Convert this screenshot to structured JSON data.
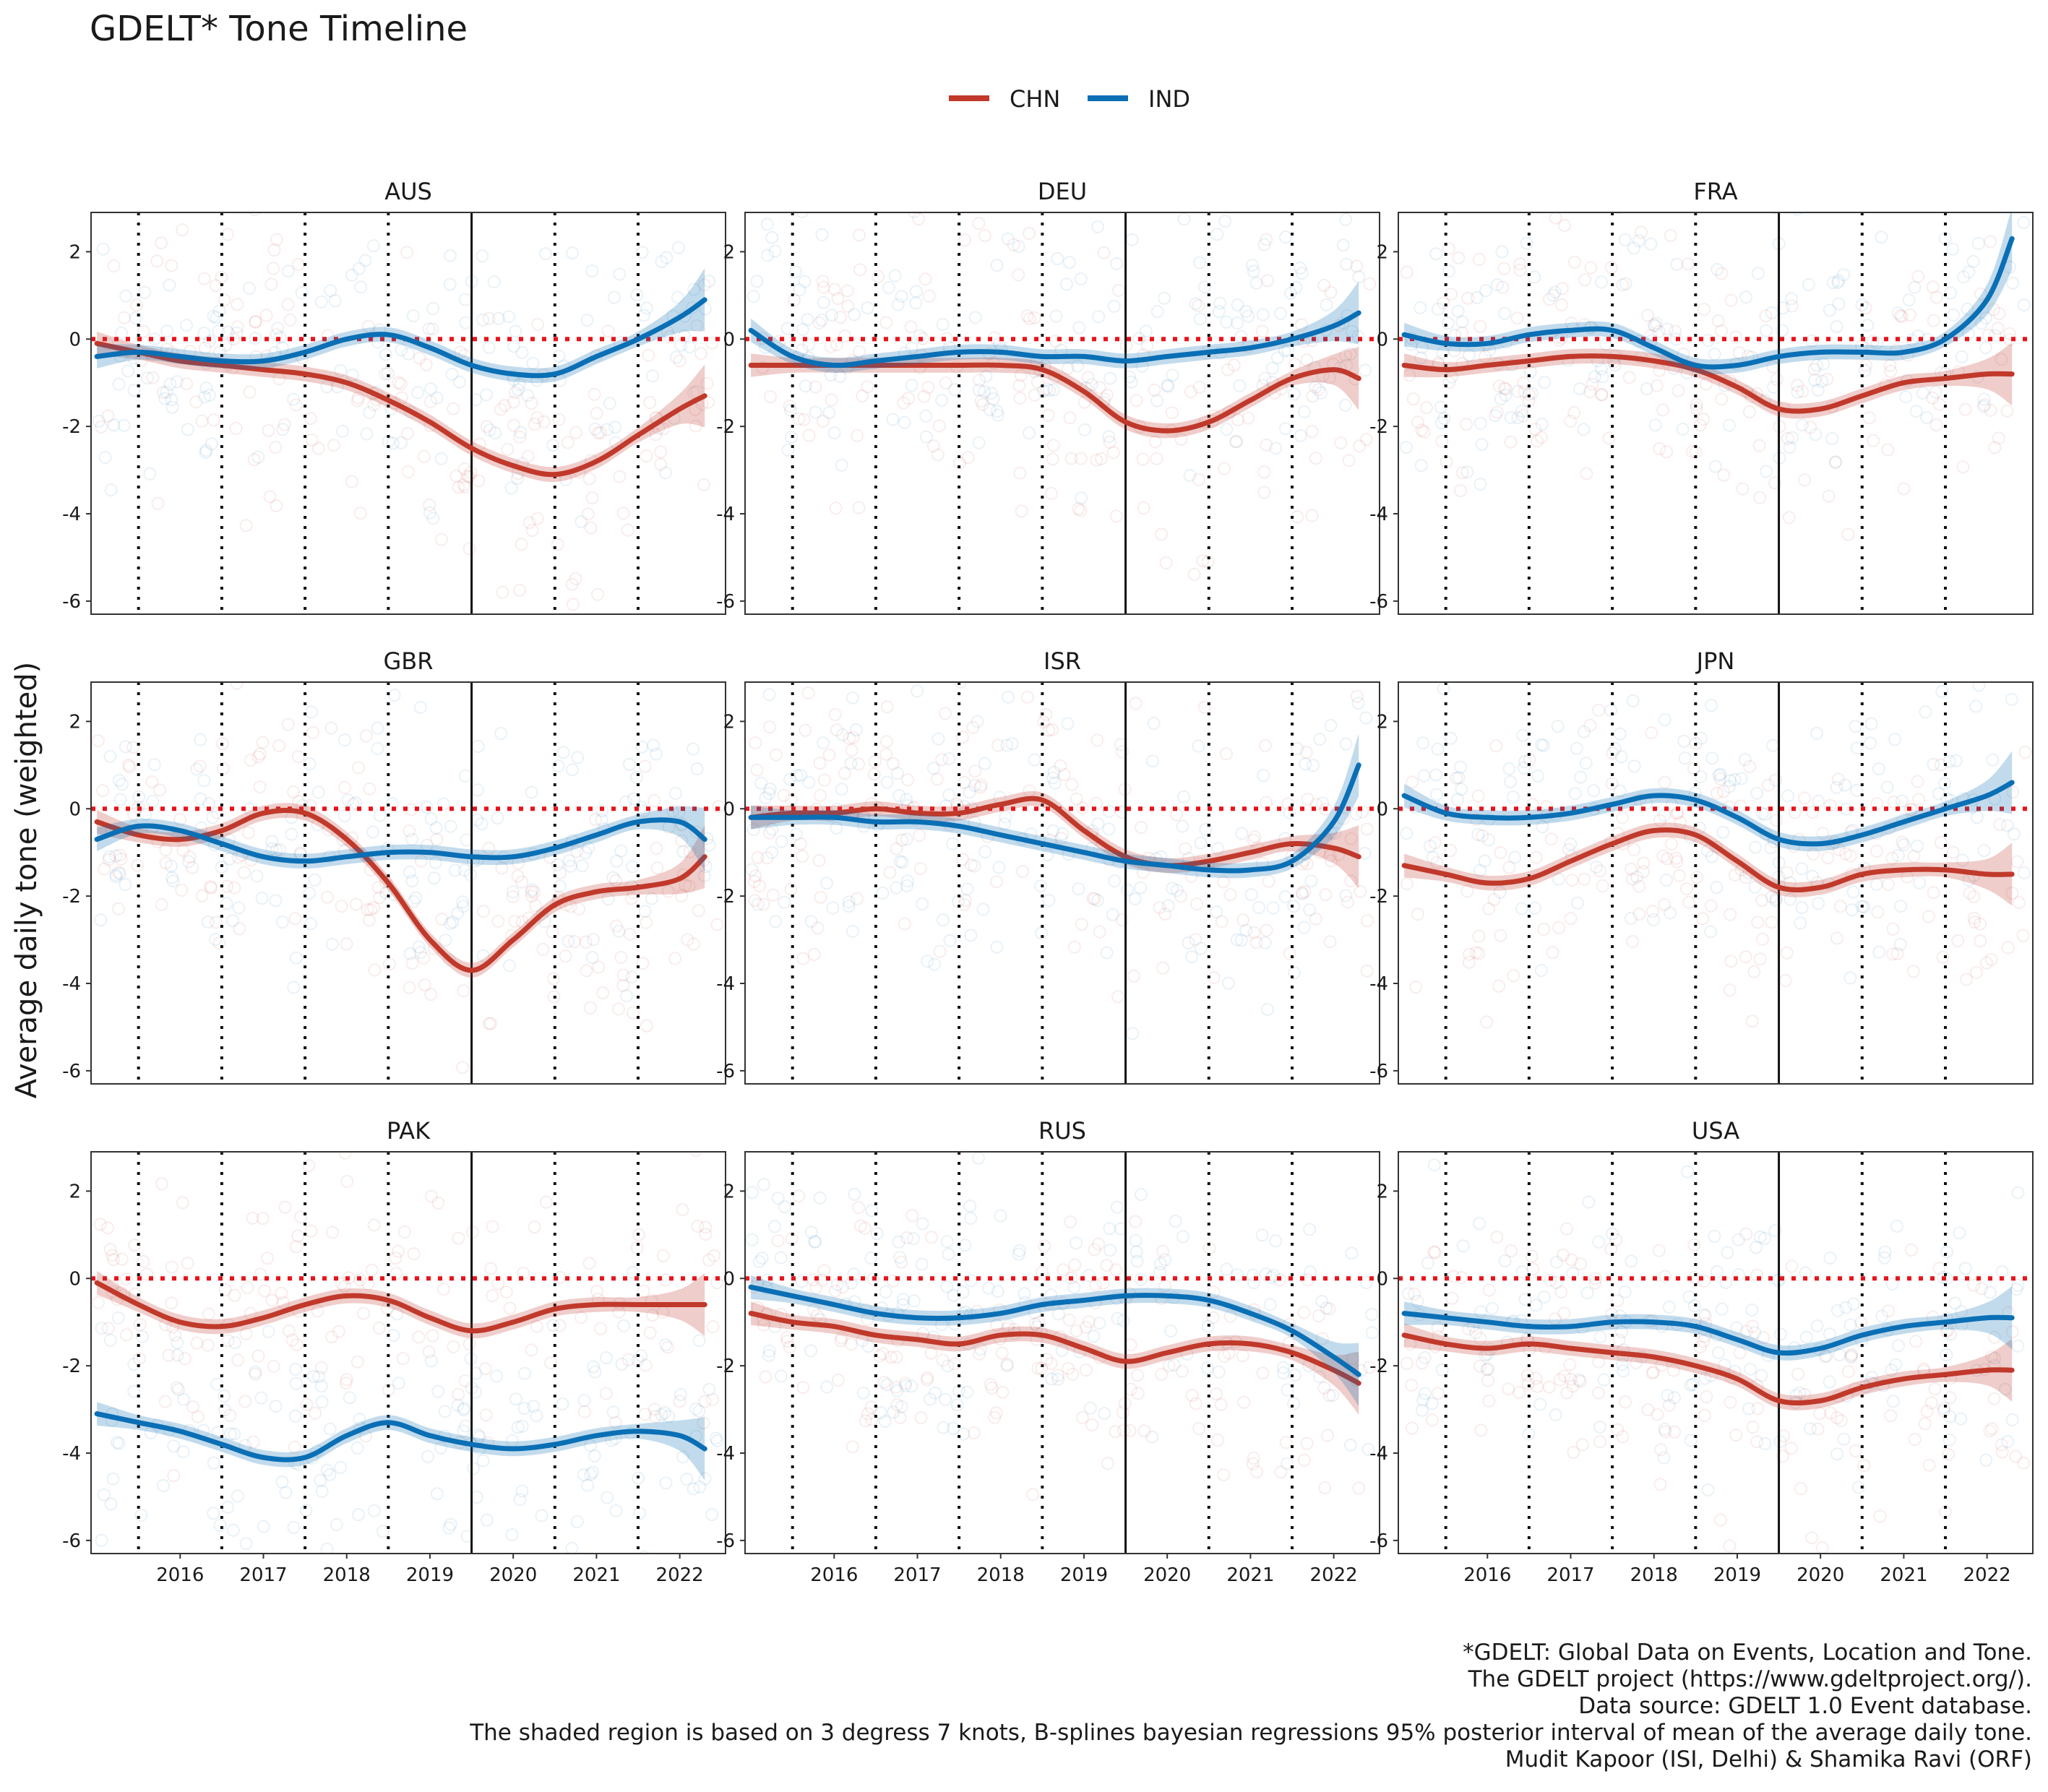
{
  "chart_data": {
    "type": "line",
    "title": "GDELT* Tone Timeline",
    "ylabel": "Average daily tone (weighted)",
    "xlabel": "",
    "xlim": [
      2014.93,
      2022.55
    ],
    "ylim": [
      -6.3,
      2.9
    ],
    "x_ticks": [
      2016,
      2017,
      2018,
      2019,
      2020,
      2021,
      2022
    ],
    "x_tick_labels": [
      "2016",
      "2017",
      "2018",
      "2019",
      "2020",
      "2021",
      "2022"
    ],
    "y_ticks": [
      2,
      0,
      -2,
      -4,
      -6
    ],
    "y_tick_labels": [
      "2",
      "0",
      "-2",
      "-4",
      "-6"
    ],
    "reference_line_y": 0,
    "dotted_vlines_x": [
      2015.5,
      2016.5,
      2017.5,
      2018.5,
      2020.5,
      2021.5
    ],
    "solid_vline_x": 2019.5,
    "legend": {
      "position": "top",
      "entries": [
        {
          "label": "CHN",
          "color": "#c0392b"
        },
        {
          "label": "IND",
          "color": "#0a6fb5"
        }
      ]
    },
    "facets": [
      {
        "name": "AUS",
        "series": [
          {
            "name": "CHN",
            "x": [
              2015.0,
              2015.5,
              2016.0,
              2016.5,
              2017.0,
              2017.5,
              2018.0,
              2018.5,
              2019.0,
              2019.5,
              2020.0,
              2020.5,
              2021.0,
              2021.5,
              2022.0,
              2022.3
            ],
            "y": [
              -0.1,
              -0.3,
              -0.5,
              -0.6,
              -0.7,
              -0.8,
              -1.0,
              -1.4,
              -1.9,
              -2.5,
              -2.9,
              -3.1,
              -2.8,
              -2.2,
              -1.6,
              -1.3
            ]
          },
          {
            "name": "IND",
            "x": [
              2015.0,
              2015.5,
              2016.0,
              2016.5,
              2017.0,
              2017.5,
              2018.0,
              2018.5,
              2019.0,
              2019.5,
              2020.0,
              2020.5,
              2021.0,
              2021.5,
              2022.0,
              2022.3
            ],
            "y": [
              -0.4,
              -0.3,
              -0.4,
              -0.5,
              -0.5,
              -0.3,
              0.0,
              0.1,
              -0.2,
              -0.6,
              -0.8,
              -0.8,
              -0.4,
              0.0,
              0.5,
              0.9
            ]
          }
        ]
      },
      {
        "name": "DEU",
        "series": [
          {
            "name": "CHN",
            "x": [
              2015.0,
              2015.5,
              2016.0,
              2016.5,
              2017.0,
              2017.5,
              2018.0,
              2018.5,
              2019.0,
              2019.5,
              2020.0,
              2020.5,
              2021.0,
              2021.5,
              2022.0,
              2022.3
            ],
            "y": [
              -0.6,
              -0.6,
              -0.6,
              -0.6,
              -0.6,
              -0.6,
              -0.6,
              -0.7,
              -1.2,
              -1.9,
              -2.1,
              -1.9,
              -1.4,
              -0.9,
              -0.7,
              -0.9
            ]
          },
          {
            "name": "IND",
            "x": [
              2015.0,
              2015.5,
              2016.0,
              2016.5,
              2017.0,
              2017.5,
              2018.0,
              2018.5,
              2019.0,
              2019.5,
              2020.0,
              2020.5,
              2021.0,
              2021.5,
              2022.0,
              2022.3
            ],
            "y": [
              0.2,
              -0.4,
              -0.6,
              -0.5,
              -0.4,
              -0.3,
              -0.3,
              -0.4,
              -0.4,
              -0.5,
              -0.4,
              -0.3,
              -0.2,
              0.0,
              0.3,
              0.6
            ]
          }
        ]
      },
      {
        "name": "FRA",
        "series": [
          {
            "name": "CHN",
            "x": [
              2015.0,
              2015.5,
              2016.0,
              2016.5,
              2017.0,
              2017.5,
              2018.0,
              2018.5,
              2019.0,
              2019.5,
              2020.0,
              2020.5,
              2021.0,
              2021.5,
              2022.0,
              2022.3
            ],
            "y": [
              -0.6,
              -0.7,
              -0.6,
              -0.5,
              -0.4,
              -0.4,
              -0.5,
              -0.7,
              -1.1,
              -1.6,
              -1.6,
              -1.3,
              -1.0,
              -0.9,
              -0.8,
              -0.8
            ]
          },
          {
            "name": "IND",
            "x": [
              2015.0,
              2015.5,
              2016.0,
              2016.5,
              2017.0,
              2017.5,
              2018.0,
              2018.5,
              2019.0,
              2019.5,
              2020.0,
              2020.5,
              2021.0,
              2021.5,
              2022.0,
              2022.3
            ],
            "y": [
              0.1,
              -0.1,
              -0.1,
              0.1,
              0.2,
              0.2,
              -0.2,
              -0.6,
              -0.6,
              -0.4,
              -0.3,
              -0.3,
              -0.3,
              0.0,
              0.9,
              2.3
            ]
          }
        ]
      },
      {
        "name": "GBR",
        "series": [
          {
            "name": "CHN",
            "x": [
              2015.0,
              2015.5,
              2016.0,
              2016.5,
              2017.0,
              2017.5,
              2018.0,
              2018.5,
              2019.0,
              2019.5,
              2020.0,
              2020.5,
              2021.0,
              2021.5,
              2022.0,
              2022.3
            ],
            "y": [
              -0.3,
              -0.6,
              -0.7,
              -0.5,
              -0.1,
              -0.1,
              -0.7,
              -1.7,
              -3.0,
              -3.7,
              -3.0,
              -2.2,
              -1.9,
              -1.8,
              -1.6,
              -1.1
            ]
          },
          {
            "name": "IND",
            "x": [
              2015.0,
              2015.5,
              2016.0,
              2016.5,
              2017.0,
              2017.5,
              2018.0,
              2018.5,
              2019.0,
              2019.5,
              2020.0,
              2020.5,
              2021.0,
              2021.5,
              2022.0,
              2022.3
            ],
            "y": [
              -0.7,
              -0.4,
              -0.5,
              -0.8,
              -1.1,
              -1.2,
              -1.1,
              -1.0,
              -1.0,
              -1.1,
              -1.1,
              -0.9,
              -0.6,
              -0.3,
              -0.3,
              -0.7
            ]
          }
        ]
      },
      {
        "name": "ISR",
        "series": [
          {
            "name": "CHN",
            "x": [
              2015.0,
              2015.5,
              2016.0,
              2016.5,
              2017.0,
              2017.5,
              2018.0,
              2018.5,
              2019.0,
              2019.5,
              2020.0,
              2020.5,
              2021.0,
              2021.5,
              2022.0,
              2022.3
            ],
            "y": [
              -0.2,
              -0.1,
              -0.1,
              0.0,
              -0.1,
              -0.1,
              0.1,
              0.2,
              -0.5,
              -1.1,
              -1.3,
              -1.2,
              -1.0,
              -0.8,
              -0.9,
              -1.1
            ]
          },
          {
            "name": "IND",
            "x": [
              2015.0,
              2015.5,
              2016.0,
              2016.5,
              2017.0,
              2017.5,
              2018.0,
              2018.5,
              2019.0,
              2019.5,
              2020.0,
              2020.5,
              2021.0,
              2021.5,
              2022.0,
              2022.3
            ],
            "y": [
              -0.2,
              -0.2,
              -0.2,
              -0.3,
              -0.3,
              -0.4,
              -0.6,
              -0.8,
              -1.0,
              -1.2,
              -1.3,
              -1.4,
              -1.4,
              -1.2,
              -0.3,
              1.0
            ]
          }
        ]
      },
      {
        "name": "JPN",
        "series": [
          {
            "name": "CHN",
            "x": [
              2015.0,
              2015.5,
              2016.0,
              2016.5,
              2017.0,
              2017.5,
              2018.0,
              2018.5,
              2019.0,
              2019.5,
              2020.0,
              2020.5,
              2021.0,
              2021.5,
              2022.0,
              2022.3
            ],
            "y": [
              -1.3,
              -1.5,
              -1.7,
              -1.6,
              -1.2,
              -0.8,
              -0.5,
              -0.6,
              -1.2,
              -1.8,
              -1.8,
              -1.5,
              -1.4,
              -1.4,
              -1.5,
              -1.5
            ]
          },
          {
            "name": "IND",
            "x": [
              2015.0,
              2015.5,
              2016.0,
              2016.5,
              2017.0,
              2017.5,
              2018.0,
              2018.5,
              2019.0,
              2019.5,
              2020.0,
              2020.5,
              2021.0,
              2021.5,
              2022.0,
              2022.3
            ],
            "y": [
              0.3,
              -0.1,
              -0.2,
              -0.2,
              -0.1,
              0.1,
              0.3,
              0.2,
              -0.2,
              -0.7,
              -0.8,
              -0.6,
              -0.3,
              0.0,
              0.3,
              0.6
            ]
          }
        ]
      },
      {
        "name": "PAK",
        "series": [
          {
            "name": "CHN",
            "x": [
              2015.0,
              2015.5,
              2016.0,
              2016.5,
              2017.0,
              2017.5,
              2018.0,
              2018.5,
              2019.0,
              2019.5,
              2020.0,
              2020.5,
              2021.0,
              2021.5,
              2022.0,
              2022.3
            ],
            "y": [
              -0.1,
              -0.6,
              -1.0,
              -1.1,
              -0.9,
              -0.6,
              -0.4,
              -0.5,
              -0.9,
              -1.2,
              -1.0,
              -0.7,
              -0.6,
              -0.6,
              -0.6,
              -0.6
            ]
          },
          {
            "name": "IND",
            "x": [
              2015.0,
              2015.5,
              2016.0,
              2016.5,
              2017.0,
              2017.5,
              2018.0,
              2018.5,
              2019.0,
              2019.5,
              2020.0,
              2020.5,
              2021.0,
              2021.5,
              2022.0,
              2022.3
            ],
            "y": [
              -3.1,
              -3.3,
              -3.5,
              -3.8,
              -4.1,
              -4.1,
              -3.6,
              -3.3,
              -3.6,
              -3.8,
              -3.9,
              -3.8,
              -3.6,
              -3.5,
              -3.6,
              -3.9
            ]
          }
        ]
      },
      {
        "name": "RUS",
        "series": [
          {
            "name": "CHN",
            "x": [
              2015.0,
              2015.5,
              2016.0,
              2016.5,
              2017.0,
              2017.5,
              2018.0,
              2018.5,
              2019.0,
              2019.5,
              2020.0,
              2020.5,
              2021.0,
              2021.5,
              2022.0,
              2022.3
            ],
            "y": [
              -0.8,
              -1.0,
              -1.1,
              -1.3,
              -1.4,
              -1.5,
              -1.3,
              -1.3,
              -1.6,
              -1.9,
              -1.7,
              -1.5,
              -1.5,
              -1.7,
              -2.1,
              -2.4
            ]
          },
          {
            "name": "IND",
            "x": [
              2015.0,
              2015.5,
              2016.0,
              2016.5,
              2017.0,
              2017.5,
              2018.0,
              2018.5,
              2019.0,
              2019.5,
              2020.0,
              2020.5,
              2021.0,
              2021.5,
              2022.0,
              2022.3
            ],
            "y": [
              -0.2,
              -0.4,
              -0.6,
              -0.8,
              -0.9,
              -0.9,
              -0.8,
              -0.6,
              -0.5,
              -0.4,
              -0.4,
              -0.5,
              -0.8,
              -1.2,
              -1.8,
              -2.2
            ]
          }
        ]
      },
      {
        "name": "USA",
        "series": [
          {
            "name": "CHN",
            "x": [
              2015.0,
              2015.5,
              2016.0,
              2016.5,
              2017.0,
              2017.5,
              2018.0,
              2018.5,
              2019.0,
              2019.5,
              2020.0,
              2020.5,
              2021.0,
              2021.5,
              2022.0,
              2022.3
            ],
            "y": [
              -1.3,
              -1.5,
              -1.6,
              -1.5,
              -1.6,
              -1.7,
              -1.8,
              -2.0,
              -2.3,
              -2.8,
              -2.8,
              -2.5,
              -2.3,
              -2.2,
              -2.1,
              -2.1
            ]
          },
          {
            "name": "IND",
            "x": [
              2015.0,
              2015.5,
              2016.0,
              2016.5,
              2017.0,
              2017.5,
              2018.0,
              2018.5,
              2019.0,
              2019.5,
              2020.0,
              2020.5,
              2021.0,
              2021.5,
              2022.0,
              2022.3
            ],
            "y": [
              -0.8,
              -0.9,
              -1.0,
              -1.1,
              -1.1,
              -1.0,
              -1.0,
              -1.1,
              -1.4,
              -1.7,
              -1.6,
              -1.3,
              -1.1,
              -1.0,
              -0.9,
              -0.9
            ]
          }
        ]
      }
    ]
  },
  "caption": [
    "*GDELT: Global Data on Events, Location and Tone.",
    "The GDELT project (https://www.gdeltproject.org/).",
    "Data source: GDELT 1.0 Event database.",
    "The shaded region is based on 3 degress 7 knots, B-splines bayesian regressions 95% posterior interval of mean of the average daily tone.",
    "Mudit Kapoor (ISI, Delhi) & Shamika Ravi (ORF)"
  ]
}
